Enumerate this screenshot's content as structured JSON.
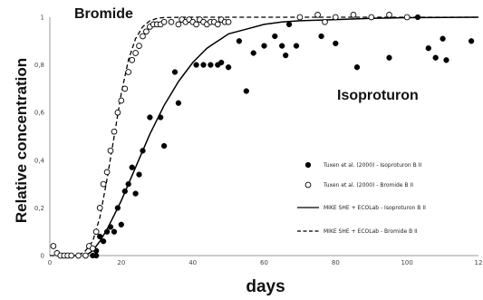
{
  "chart_data": {
    "type": "scatter",
    "title": "",
    "xlabel": "days",
    "ylabel": "Relative concentration",
    "xlim": [
      0,
      120
    ],
    "ylim": [
      0,
      1
    ],
    "x_ticks": [
      "0",
      "20",
      "40",
      "60",
      "80",
      "100",
      "12"
    ],
    "y_ticks": [
      "0",
      "0,2",
      "0,4",
      "0,6",
      "0,8",
      "1"
    ],
    "annotations": [
      {
        "text": "Bromide"
      },
      {
        "text": "Isoproturon"
      }
    ],
    "legend_position": "right",
    "series": [
      {
        "name": "Tuxen et al. (2000) - Isoproturon B II",
        "kind": "points",
        "marker": "filled-circle",
        "points": [
          [
            10,
            0
          ],
          [
            12,
            0
          ],
          [
            13,
            0
          ],
          [
            13,
            0.02
          ],
          [
            14,
            0.08
          ],
          [
            15,
            0.06
          ],
          [
            16,
            0.1
          ],
          [
            17,
            0.12
          ],
          [
            18,
            0.1
          ],
          [
            19,
            0.2
          ],
          [
            20,
            0.13
          ],
          [
            21,
            0.27
          ],
          [
            22,
            0.3
          ],
          [
            23,
            0.37
          ],
          [
            24,
            0.26
          ],
          [
            25,
            0.34
          ],
          [
            26,
            0.44
          ],
          [
            28,
            0.58
          ],
          [
            31,
            0.58
          ],
          [
            32,
            0.46
          ],
          [
            35,
            0.77
          ],
          [
            36,
            0.64
          ],
          [
            41,
            0.8
          ],
          [
            43,
            0.8
          ],
          [
            45,
            0.8
          ],
          [
            47,
            0.8
          ],
          [
            48,
            0.81
          ],
          [
            50,
            0.79
          ],
          [
            53,
            0.9
          ],
          [
            55,
            0.69
          ],
          [
            57,
            0.85
          ],
          [
            60,
            0.88
          ],
          [
            63,
            0.92
          ],
          [
            65,
            0.88
          ],
          [
            66,
            0.84
          ],
          [
            67,
            0.97
          ],
          [
            69,
            0.88
          ],
          [
            76,
            0.92
          ],
          [
            80,
            0.89
          ],
          [
            86,
            0.79
          ],
          [
            95,
            0.83
          ],
          [
            103,
            1.0
          ],
          [
            106,
            0.87
          ],
          [
            108,
            0.83
          ],
          [
            110,
            0.91
          ],
          [
            111,
            0.82
          ],
          [
            118,
            0.9
          ]
        ]
      },
      {
        "name": "Tuxen et al. (2000) - Bromide B II",
        "kind": "points",
        "marker": "open-circle",
        "points": [
          [
            1,
            0.04
          ],
          [
            2,
            0.01
          ],
          [
            3,
            0
          ],
          [
            4,
            0
          ],
          [
            5,
            0
          ],
          [
            6,
            0
          ],
          [
            8,
            0
          ],
          [
            10,
            0
          ],
          [
            11,
            0.04
          ],
          [
            12,
            0.03
          ],
          [
            13,
            0.1
          ],
          [
            14,
            0.2
          ],
          [
            15,
            0.3
          ],
          [
            16,
            0.35
          ],
          [
            17,
            0.44
          ],
          [
            18,
            0.52
          ],
          [
            19,
            0.6
          ],
          [
            20,
            0.65
          ],
          [
            21,
            0.7
          ],
          [
            22,
            0.77
          ],
          [
            23,
            0.82
          ],
          [
            24,
            0.85
          ],
          [
            25,
            0.88
          ],
          [
            26,
            0.92
          ],
          [
            27,
            0.94
          ],
          [
            28,
            0.96
          ],
          [
            29,
            0.97
          ],
          [
            30,
            0.97
          ],
          [
            31,
            0.97
          ],
          [
            32,
            0.98
          ],
          [
            34,
            0.98
          ],
          [
            36,
            0.97
          ],
          [
            37,
            0.99
          ],
          [
            38,
            0.98
          ],
          [
            39,
            0.99
          ],
          [
            40,
            0.98
          ],
          [
            41,
            0.97
          ],
          [
            42,
            0.99
          ],
          [
            43,
            0.98
          ],
          [
            44,
            0.97
          ],
          [
            45,
            0.98
          ],
          [
            46,
            0.98
          ],
          [
            47,
            0.97
          ],
          [
            48,
            0.99
          ],
          [
            49,
            0.98
          ],
          [
            50,
            0.98
          ],
          [
            70,
            1.0
          ],
          [
            75,
            1.01
          ],
          [
            77,
            0.98
          ],
          [
            80,
            1.0
          ],
          [
            85,
            1.01
          ],
          [
            90,
            1.0
          ],
          [
            95,
            1.01
          ],
          [
            100,
            1.0
          ]
        ]
      },
      {
        "name": "MIKE SHE + ECOLab - Isoproturon B II",
        "kind": "line",
        "dash": "solid",
        "points": [
          [
            10,
            0
          ],
          [
            12,
            0.02
          ],
          [
            14,
            0.06
          ],
          [
            16,
            0.11
          ],
          [
            18,
            0.17
          ],
          [
            20,
            0.23
          ],
          [
            22,
            0.3
          ],
          [
            24,
            0.37
          ],
          [
            26,
            0.44
          ],
          [
            28,
            0.51
          ],
          [
            30,
            0.57
          ],
          [
            32,
            0.63
          ],
          [
            34,
            0.68
          ],
          [
            36,
            0.73
          ],
          [
            38,
            0.77
          ],
          [
            40,
            0.81
          ],
          [
            42,
            0.84
          ],
          [
            44,
            0.87
          ],
          [
            46,
            0.89
          ],
          [
            48,
            0.91
          ],
          [
            50,
            0.93
          ],
          [
            55,
            0.95
          ],
          [
            60,
            0.97
          ],
          [
            65,
            0.98
          ],
          [
            70,
            0.985
          ],
          [
            80,
            0.99
          ],
          [
            90,
            0.995
          ],
          [
            100,
            0.998
          ],
          [
            110,
            0.999
          ],
          [
            120,
            1.0
          ]
        ]
      },
      {
        "name": "MIKE SHE + ECOLab - Bromide B II",
        "kind": "line",
        "dash": "dashed",
        "points": [
          [
            0,
            0
          ],
          [
            8,
            0
          ],
          [
            10,
            0.02
          ],
          [
            12,
            0.06
          ],
          [
            14,
            0.16
          ],
          [
            16,
            0.32
          ],
          [
            18,
            0.5
          ],
          [
            20,
            0.68
          ],
          [
            22,
            0.82
          ],
          [
            24,
            0.91
          ],
          [
            26,
            0.96
          ],
          [
            28,
            0.985
          ],
          [
            30,
            0.995
          ],
          [
            32,
            0.999
          ],
          [
            40,
            1.0
          ],
          [
            60,
            1.0
          ],
          [
            80,
            1.0
          ],
          [
            100,
            1.0
          ],
          [
            120,
            1.0
          ]
        ]
      }
    ]
  }
}
